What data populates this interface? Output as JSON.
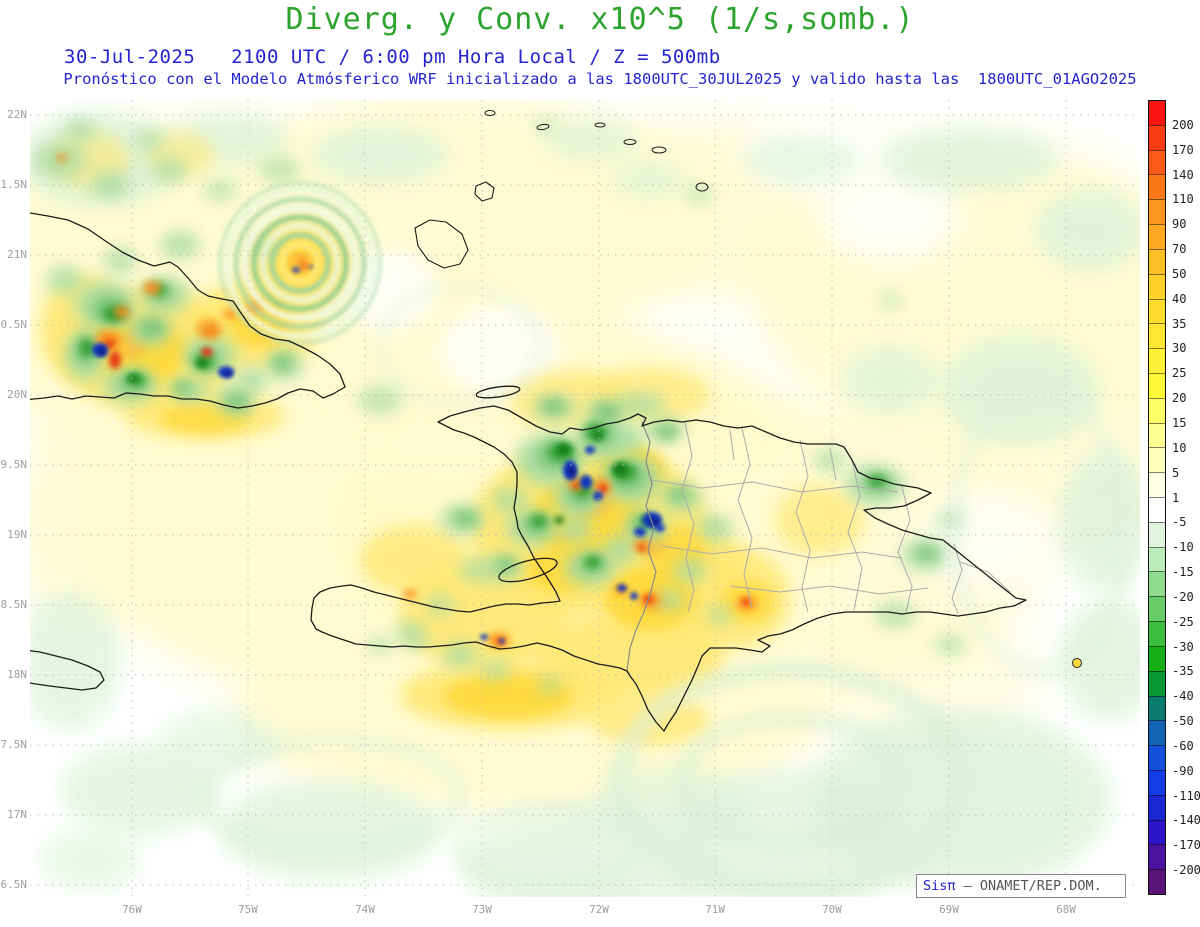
{
  "header": {
    "title": "Diverg. y Conv. x10^5 (1/s,somb.)",
    "subtitle1": "30-Jul-2025   2100 UTC / 6:00 pm Hora Local / Z = 500mb",
    "subtitle2": "Pronóstico con el Modelo Atmósferico WRF inicializado a las 1800UTC_30JUL2025 y valido hasta las  1800UTC_01AGO2025"
  },
  "map": {
    "lat_labels": [
      "22N",
      "1.5N",
      "21N",
      "0.5N",
      "20N",
      "9.5N",
      "19N",
      "8.5N",
      "18N",
      "7.5N",
      "17N",
      "6.5N"
    ],
    "lon_labels": [
      "76W",
      "75W",
      "74W",
      "73W",
      "72W",
      "71W",
      "70W",
      "69W",
      "68W"
    ]
  },
  "colorbar": {
    "labels": [
      "200",
      "170",
      "140",
      "110",
      "90",
      "70",
      "50",
      "40",
      "35",
      "30",
      "25",
      "20",
      "15",
      "10",
      "5",
      "1",
      "-5",
      "-10",
      "-15",
      "-20",
      "-25",
      "-30",
      "-35",
      "-40",
      "-50",
      "-60",
      "-90",
      "-110",
      "-140",
      "-170",
      "-200"
    ],
    "colors": [
      "#FA1414",
      "#FA3C14",
      "#FB5A16",
      "#FC7818",
      "#FC9620",
      "#FDAA22",
      "#FDBE26",
      "#FED22A",
      "#FEDC2E",
      "#FEE632",
      "#FEF036",
      "#FEFA3A",
      "#FFFF66",
      "#FFFF90",
      "#FFFFBE",
      "#FFFFE6",
      "#FFFFFF",
      "#DFF5DF",
      "#BCEBBC",
      "#92DC92",
      "#66CD66",
      "#3CBE3C",
      "#16AF16",
      "#0A9632",
      "#0A7D6E",
      "#1464B4",
      "#1450DC",
      "#143CE6",
      "#1928D2",
      "#2D14C8",
      "#4B14A0",
      "#5A1478"
    ]
  },
  "attribution": {
    "brand": "Sisπ",
    "text": " – ONAMET/REP.DOM."
  },
  "chart_data": {
    "type": "heatmap",
    "title": "Diverg. y Conv. x10^5 (1/s,somb.)",
    "variable": "Divergencia y Convergencia x10^5 (1/s, sombreado)",
    "level": "Z = 500mb",
    "valid_time": "30-Jul-2025 2100 UTC / 6:00 pm Hora Local",
    "model": "WRF",
    "initialized": "1800UTC_30JUL2025",
    "valid_until": "1800UTC_01AGO2025",
    "x_ticks": [
      "76W",
      "75W",
      "74W",
      "73W",
      "72W",
      "71W",
      "70W",
      "69W",
      "68W"
    ],
    "y_ticks": [
      "22N",
      "1.5N",
      "21N",
      "0.5N",
      "20N",
      "9.5N",
      "19N",
      "8.5N",
      "18N",
      "7.5N",
      "17N",
      "6.5N"
    ],
    "shading_levels": [
      200,
      170,
      140,
      110,
      90,
      70,
      50,
      40,
      35,
      30,
      25,
      20,
      15,
      10,
      5,
      1,
      -5,
      -10,
      -15,
      -20,
      -25,
      -30,
      -35,
      -40,
      -50,
      -60,
      -90,
      -110,
      -140,
      -170,
      -200
    ],
    "legend_position": "right",
    "grid": true
  }
}
